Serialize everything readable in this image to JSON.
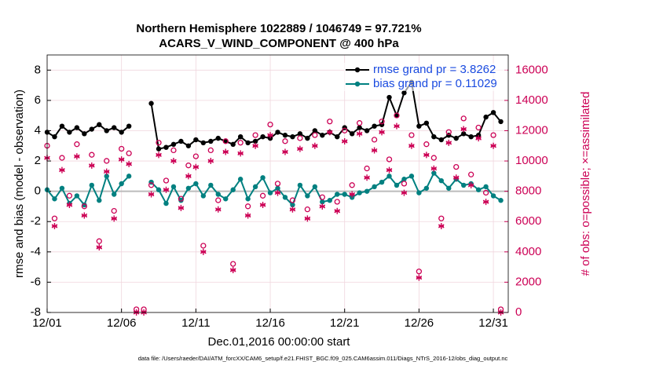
{
  "chart_data": {
    "type": "line",
    "title": "Northern Hemisphere 1022889 / 1046749 = 97.721%",
    "subtitle": "ACARS_V_WIND_COMPONENT @ 400 hPa",
    "x_label": "Dec.01,2016 00:00:00 start",
    "y_label": "rmse and bias (model - observation)",
    "y2_label": "# of obs: o=possible; ×=assimilated",
    "footnote": "data file: /Users/raeder/DAI/ATM_forcXX/CAM6_setup/f.e21.FHIST_BGC.f09_025.CAM6assim.011/Diags_NTrS_2016-12/obs_diag_output.nc",
    "x": [
      0,
      0.5,
      1,
      1.5,
      2,
      2.5,
      3,
      3.5,
      4,
      4.5,
      5,
      5.5,
      6,
      6.5,
      7,
      7.5,
      8,
      8.5,
      9,
      9.5,
      10,
      10.5,
      11,
      11.5,
      12,
      12.5,
      13,
      13.5,
      14,
      14.5,
      15,
      15.5,
      16,
      16.5,
      17,
      17.5,
      18,
      18.5,
      19,
      19.5,
      20,
      20.5,
      21,
      21.5,
      22,
      22.5,
      23,
      23.5,
      24,
      24.5,
      25,
      25.5,
      26,
      26.5,
      27,
      27.5,
      28,
      28.5,
      29,
      29.5,
      30,
      30.5
    ],
    "xlim": [
      0,
      31
    ],
    "xticks": [
      {
        "value": 0,
        "label": "12/01"
      },
      {
        "value": 5,
        "label": "12/06"
      },
      {
        "value": 10,
        "label": "12/11"
      },
      {
        "value": 15,
        "label": "12/16"
      },
      {
        "value": 20,
        "label": "12/21"
      },
      {
        "value": 25,
        "label": "12/26"
      },
      {
        "value": 30,
        "label": "12/31"
      }
    ],
    "ylim": [
      -8,
      9
    ],
    "yticks": [
      -8,
      -6,
      -4,
      -2,
      0,
      2,
      4,
      6,
      8
    ],
    "y2lim": [
      0,
      17000
    ],
    "y2ticks": [
      0,
      2000,
      4000,
      6000,
      8000,
      10000,
      12000,
      14000,
      16000
    ],
    "grid": true,
    "legend": "upper right",
    "series": [
      {
        "name": "rmse grand pr = 3.8262",
        "color": "#000000",
        "marker": "dot",
        "values": [
          3.9,
          3.6,
          4.3,
          3.9,
          4.2,
          3.8,
          4.1,
          4.4,
          4.0,
          4.2,
          3.9,
          4.3,
          null,
          null,
          5.8,
          2.8,
          2.9,
          3.1,
          3.3,
          3.0,
          3.4,
          3.2,
          3.3,
          3.5,
          3.3,
          3.1,
          3.6,
          3.2,
          3.3,
          3.6,
          3.5,
          3.9,
          3.7,
          3.6,
          3.8,
          3.5,
          4.0,
          3.7,
          3.9,
          3.6,
          4.2,
          3.8,
          4.2,
          4.0,
          4.3,
          4.4,
          6.2,
          5.0,
          6.5,
          7.2,
          4.3,
          4.5,
          3.6,
          3.4,
          3.7,
          3.5,
          3.8,
          3.6,
          3.7,
          4.9,
          5.2,
          4.6
        ]
      },
      {
        "name": "bias grand pr = 0.11029",
        "color": "#008080",
        "marker": "dot",
        "values": [
          0.1,
          -0.5,
          0.2,
          -0.8,
          -0.3,
          -0.9,
          0.4,
          -0.6,
          1.0,
          -0.2,
          0.5,
          1.0,
          null,
          null,
          0.6,
          0.1,
          -0.8,
          0.3,
          -0.6,
          0.2,
          0.5,
          -0.3,
          0.4,
          -0.2,
          -0.5,
          0.1,
          0.8,
          -0.5,
          0.3,
          0.9,
          -0.1,
          0.2,
          -0.4,
          -0.9,
          0.4,
          -0.3,
          0.3,
          -0.7,
          -0.6,
          -0.2,
          -0.2,
          -0.4,
          -0.1,
          0.0,
          0.3,
          0.6,
          1.0,
          0.4,
          0.8,
          1.0,
          -0.1,
          0.2,
          1.2,
          0.7,
          0.2,
          0.8,
          0.4,
          0.5,
          0.1,
          0.3,
          -0.3,
          -0.6
        ]
      },
      {
        "color": "#cc0055",
        "axis": "y2",
        "marker": "circle",
        "values": [
          10800,
          6000,
          10000,
          7500,
          10900,
          6800,
          10200,
          4500,
          9800,
          6500,
          10600,
          10300,
          0,
          0,
          8200,
          11000,
          8500,
          10500,
          7300,
          9500,
          10100,
          4200,
          10500,
          7200,
          11100,
          3000,
          11000,
          6800,
          11500,
          7500,
          12200,
          8300,
          11100,
          7200,
          11300,
          6600,
          11500,
          7400,
          12400,
          7100,
          11800,
          8200,
          12300,
          9300,
          11200,
          12400,
          9900,
          12800,
          8300,
          11500,
          2500,
          10900,
          10000,
          6000,
          11700,
          9400,
          12600,
          8900,
          12000,
          7700,
          11500,
          0
        ]
      },
      {
        "color": "#cc0055",
        "axis": "y2",
        "marker": "asterisk",
        "values": [
          10200,
          5700,
          9400,
          7100,
          10300,
          6400,
          9700,
          4300,
          9300,
          6200,
          10100,
          9800,
          0,
          0,
          7800,
          10400,
          8100,
          10000,
          6900,
          9000,
          9600,
          4000,
          10000,
          6800,
          10600,
          2800,
          10500,
          6400,
          11000,
          7100,
          11700,
          7900,
          10600,
          6800,
          10800,
          6200,
          11000,
          7000,
          11900,
          6700,
          11300,
          7800,
          11800,
          8900,
          10700,
          11900,
          9400,
          12300,
          7900,
          11000,
          2300,
          10400,
          9500,
          5700,
          11200,
          8900,
          12100,
          8400,
          11500,
          7300,
          11000,
          0
        ]
      }
    ]
  }
}
